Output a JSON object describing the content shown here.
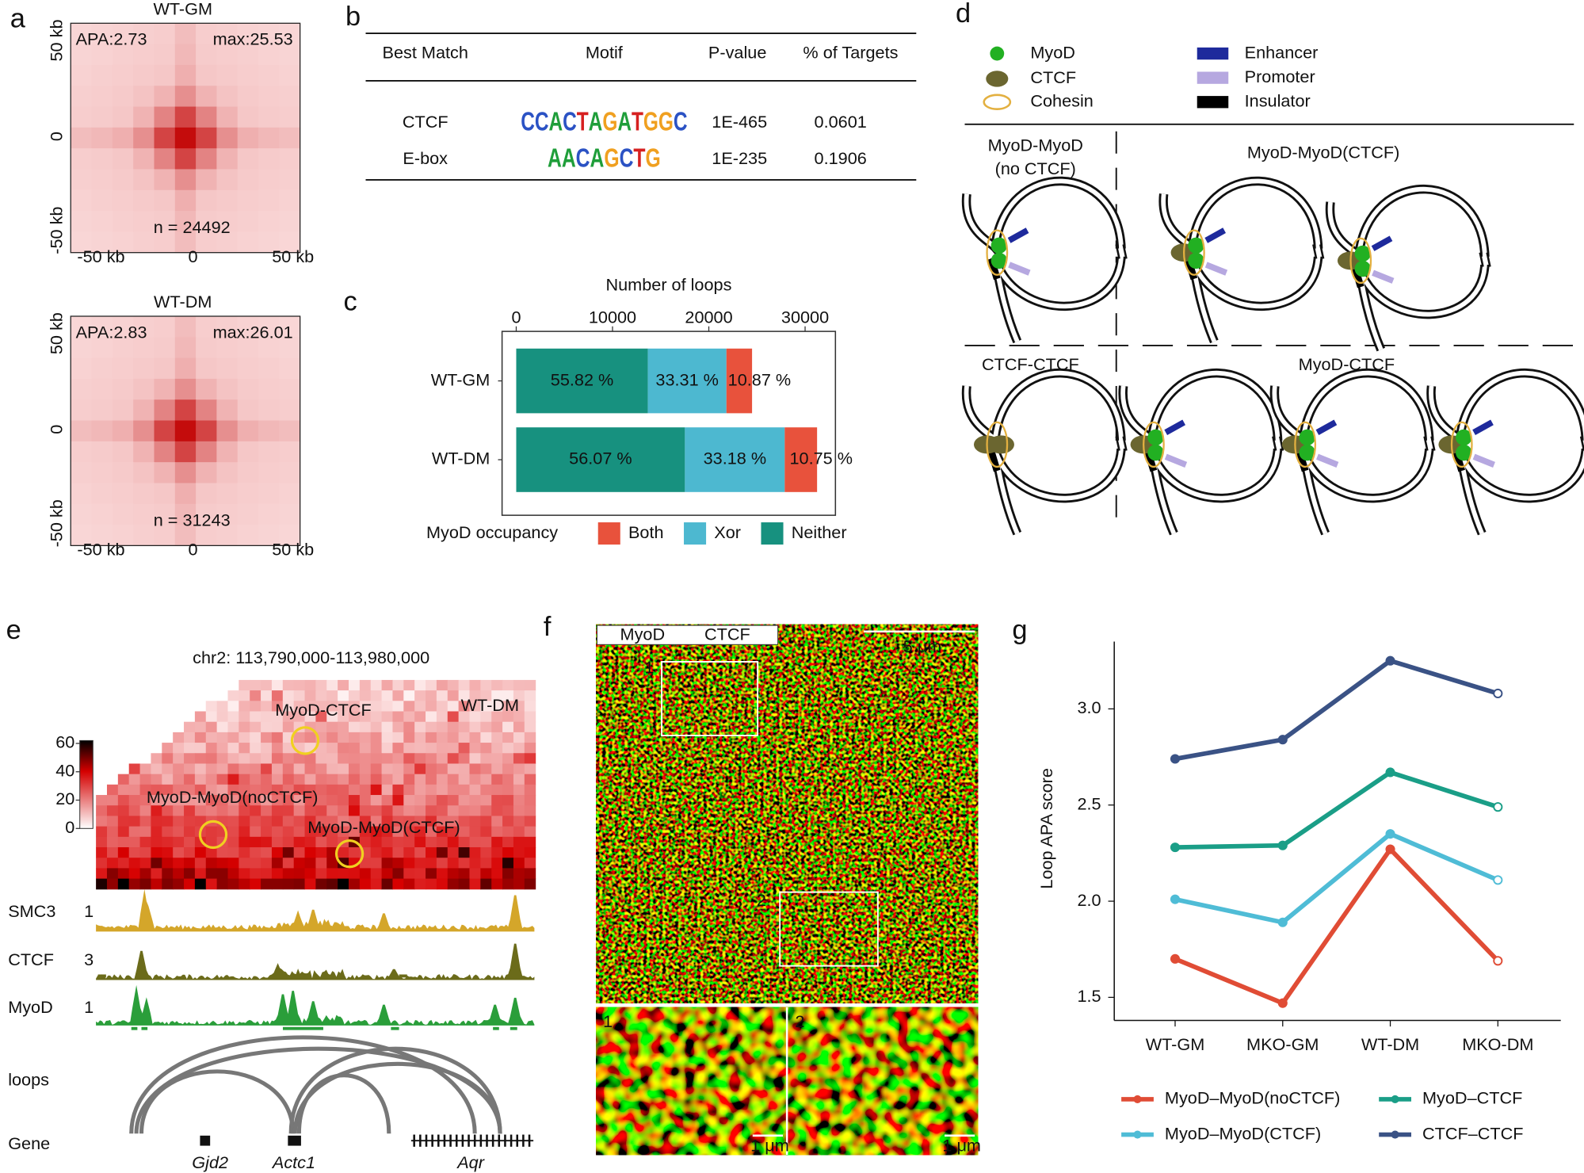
{
  "panel_letters": [
    "a",
    "b",
    "c",
    "d",
    "e",
    "f",
    "g"
  ],
  "a": {
    "maps": [
      {
        "title": "WT-GM",
        "apa": "APA:2.73",
        "max": "max:25.53",
        "n": "n = 24492"
      },
      {
        "title": "WT-DM",
        "apa": "APA:2.83",
        "max": "max:26.01",
        "n": "n = 31243"
      }
    ],
    "y_ticks": [
      "50 kb",
      "0",
      "-50 kb"
    ],
    "x_ticks": [
      "-50 kb",
      "0",
      "50 kb"
    ]
  },
  "b": {
    "headers": [
      "Best Match",
      "Motif",
      "P-value",
      "% of Targets"
    ],
    "rows": [
      [
        "CTCF",
        "CCACTAGATGGC",
        "1E-465",
        "0.0601"
      ],
      [
        "E-box",
        "AACAGCTG",
        "1E-235",
        "0.1906"
      ]
    ]
  },
  "d": {
    "legend": [
      "MyoD",
      "CTCF",
      "Cohesin",
      "Enhancer",
      "Promoter",
      "Insulator"
    ],
    "groups": [
      [
        "MyoD-MyoD",
        "(no CTCF)"
      ],
      [
        "MyoD-MyoD(CTCF)"
      ],
      [
        "CTCF-CTCF"
      ],
      [
        "MyoD-CTCF"
      ]
    ]
  },
  "e": {
    "region": "chr2: 113,790,000-113,980,000",
    "sample": "WT-DM",
    "colorbar_ticks": [
      60,
      40,
      20,
      0
    ],
    "loop_labels": [
      "MyoD-CTCF",
      "MyoD-MyoD(noCTCF)",
      "MyoD-MyoD(CTCF)"
    ],
    "tracks": [
      {
        "name": "SMC3",
        "scale": "1"
      },
      {
        "name": "CTCF",
        "scale": "3"
      },
      {
        "name": "MyoD",
        "scale": "1"
      }
    ],
    "rows": [
      "loops",
      "Gene"
    ],
    "genes": [
      "Gjd2",
      "Actc1",
      "Aqr"
    ]
  },
  "f": {
    "channels": [
      "MyoD",
      "CTCF"
    ],
    "scale_bar": "5 μm",
    "boxes": [
      "1",
      "2"
    ],
    "inset_scale": "1 μm"
  },
  "chart_data": [
    {
      "type": "bar",
      "orientation": "horizontal",
      "stacked": true,
      "x_label": "Number of loops",
      "categories": [
        "WT-GM",
        "WT-DM"
      ],
      "series": [
        {
          "name": "Neither",
          "color": "#17917f",
          "values": [
            13671,
            17518
          ],
          "share_labels": [
            "55.82 %",
            "56.07 %"
          ]
        },
        {
          "name": "Xor",
          "color": "#4db8d0",
          "values": [
            8158,
            10366
          ],
          "share_labels": [
            "33.31 %",
            "33.18 %"
          ]
        },
        {
          "name": "Both",
          "color": "#e8523c",
          "values": [
            2662,
            3359
          ],
          "share_labels": [
            "10.87 %",
            "10.75 %"
          ]
        }
      ],
      "legend_title": "MyoD occupancy",
      "xlim": [
        -1470,
        33150
      ],
      "xticks": [
        0,
        10000,
        20000,
        30000
      ]
    },
    {
      "type": "line",
      "y_label": "Loop APA score",
      "categories": [
        "WT-GM",
        "MKO-GM",
        "WT-DM",
        "MKO-DM"
      ],
      "series": [
        {
          "name": "MyoD–MyoD(noCTCF)",
          "color": "#e04c35",
          "values": [
            1.7,
            1.47,
            2.27,
            1.69
          ]
        },
        {
          "name": "MyoD–MyoD(CTCF)",
          "color": "#4fbcd6",
          "values": [
            2.01,
            1.89,
            2.35,
            2.11
          ]
        },
        {
          "name": "MyoD–CTCF",
          "color": "#1a9e87",
          "values": [
            2.28,
            2.29,
            2.67,
            2.49
          ]
        },
        {
          "name": "CTCF–CTCF",
          "color": "#3a5285",
          "values": [
            2.74,
            2.84,
            3.25,
            3.08
          ]
        }
      ],
      "ylim": [
        1.38,
        3.35
      ],
      "yticks": [
        1.5,
        {
          "value": 2,
          "label": "2.0"
        },
        2.5,
        {
          "value": 3,
          "label": "3.0"
        }
      ]
    }
  ]
}
